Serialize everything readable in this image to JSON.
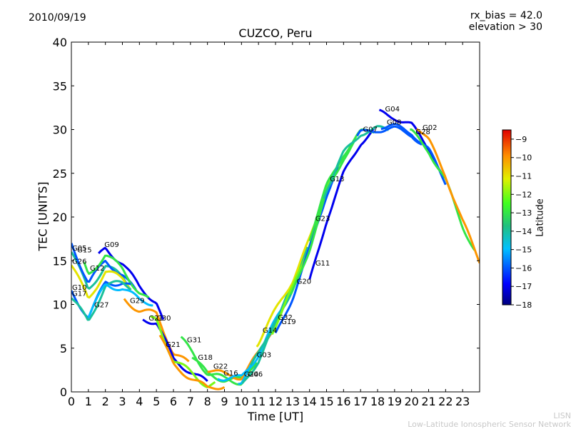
{
  "header": {
    "date": "2010/09/19",
    "rx_bias": "rx_bias = 42.0",
    "elevation": "elevation > 30"
  },
  "footer": {
    "lisn_short": "LISN",
    "lisn_full": "Low-Latitude Ionospheric Sensor Network"
  },
  "chart_data": {
    "type": "scatter",
    "title": "CUZCO, Peru",
    "xlabel": "Time [UT]",
    "ylabel": "TEC [UNITS]",
    "xlim": [
      0,
      24
    ],
    "ylim": [
      0,
      40
    ],
    "xticks": [
      "0",
      "1",
      "2",
      "3",
      "4",
      "5",
      "6",
      "7",
      "8",
      "9",
      "10",
      "11",
      "12",
      "13",
      "14",
      "15",
      "16",
      "17",
      "18",
      "19",
      "20",
      "21",
      "22",
      "23"
    ],
    "yticks": [
      "0",
      "5",
      "10",
      "15",
      "20",
      "25",
      "30",
      "35",
      "40"
    ],
    "colorbar": {
      "label": "Latitude",
      "range": [
        -18,
        -8.5
      ],
      "ticks": [
        "−9",
        "−10",
        "−11",
        "−12",
        "−13",
        "−14",
        "−15",
        "−16",
        "−17",
        "−18"
      ]
    },
    "satellites": [
      {
        "name": "G05",
        "t": 0.0,
        "tec": 16.0,
        "lat": -14
      },
      {
        "name": "G15",
        "t": 0.3,
        "tec": 15.8,
        "lat": -16
      },
      {
        "name": "G26",
        "t": 0.0,
        "tec": 14.5,
        "lat": -11
      },
      {
        "name": "G09",
        "t": 1.9,
        "tec": 16.4,
        "lat": -17
      },
      {
        "name": "G12",
        "t": 1.05,
        "tec": 13.7,
        "lat": -13
      },
      {
        "name": "G10",
        "t": 0.0,
        "tec": 11.5,
        "lat": -16
      },
      {
        "name": "G17",
        "t": 0.0,
        "tec": 10.8,
        "lat": -14
      },
      {
        "name": "G27",
        "t": 1.3,
        "tec": 9.5,
        "lat": -15
      },
      {
        "name": "G29",
        "t": 3.4,
        "tec": 10.0,
        "lat": -10
      },
      {
        "name": "G21",
        "t": 4.5,
        "tec": 8.0,
        "lat": -17
      },
      {
        "name": "G30",
        "t": 4.95,
        "tec": 8.0,
        "lat": -12
      },
      {
        "name": "G21",
        "t": 5.5,
        "tec": 5.0,
        "lat": -10
      },
      {
        "name": "G31",
        "t": 6.75,
        "tec": 5.5,
        "lat": -13
      },
      {
        "name": "G18",
        "t": 7.4,
        "tec": 3.5,
        "lat": -13
      },
      {
        "name": "G22",
        "t": 8.3,
        "tec": 2.5,
        "lat": -10
      },
      {
        "name": "G16",
        "t": 8.9,
        "tec": 1.7,
        "lat": -15
      },
      {
        "name": "G24",
        "t": 10.1,
        "tec": 1.6,
        "lat": -15
      },
      {
        "name": "G06",
        "t": 10.35,
        "tec": 1.6,
        "lat": -14
      },
      {
        "name": "G03",
        "t": 10.85,
        "tec": 3.8,
        "lat": -14
      },
      {
        "name": "G14",
        "t": 11.2,
        "tec": 6.6,
        "lat": -11
      },
      {
        "name": "G32",
        "t": 12.1,
        "tec": 8.1,
        "lat": -12
      },
      {
        "name": "G19",
        "t": 12.3,
        "tec": 7.6,
        "lat": -16
      },
      {
        "name": "G20",
        "t": 13.2,
        "tec": 12.2,
        "lat": -13
      },
      {
        "name": "G11",
        "t": 14.3,
        "tec": 14.3,
        "lat": -17
      },
      {
        "name": "G23",
        "t": 14.3,
        "tec": 19.4,
        "lat": -13
      },
      {
        "name": "G13",
        "t": 15.15,
        "tec": 23.9,
        "lat": -14
      },
      {
        "name": "G07",
        "t": 17.1,
        "tec": 29.6,
        "lat": -16
      },
      {
        "name": "G04",
        "t": 18.4,
        "tec": 31.9,
        "lat": -17
      },
      {
        "name": "G08",
        "t": 18.5,
        "tec": 30.4,
        "lat": -16
      },
      {
        "name": "G28",
        "t": 20.2,
        "tec": 29.3,
        "lat": -13
      },
      {
        "name": "G02",
        "t": 20.6,
        "tec": 29.8,
        "lat": -10
      }
    ]
  }
}
